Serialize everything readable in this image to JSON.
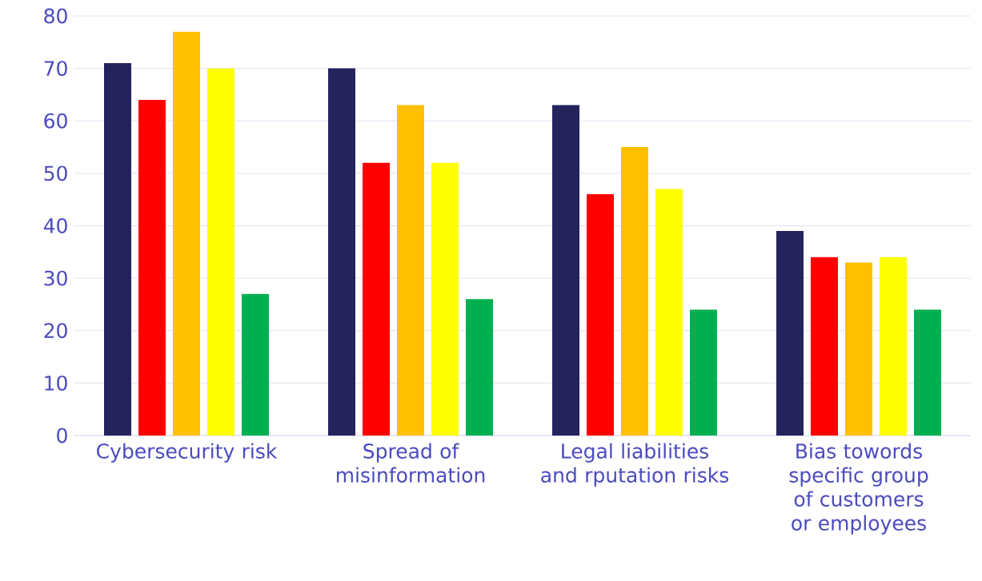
{
  "chart_data": {
    "type": "bar",
    "categories": [
      "Cybersecurity risk",
      "Spread of misinformation",
      "Legal liabilities and rputation risks",
      "Bias towords specific group of customers or employees"
    ],
    "series": [
      {
        "color": "#24235c",
        "values": [
          71,
          70,
          63,
          39
        ]
      },
      {
        "color": "#ff0000",
        "values": [
          64,
          52,
          46,
          34
        ]
      },
      {
        "color": "#ffc000",
        "values": [
          77,
          63,
          55,
          33
        ]
      },
      {
        "color": "#ffff00",
        "values": [
          70,
          52,
          47,
          34
        ]
      },
      {
        "color": "#00b050",
        "values": [
          27,
          26,
          24,
          24
        ]
      }
    ],
    "ylim": [
      0,
      80
    ],
    "yticks": [
      0,
      10,
      20,
      30,
      40,
      50,
      60,
      70,
      80
    ],
    "grid": "y"
  }
}
